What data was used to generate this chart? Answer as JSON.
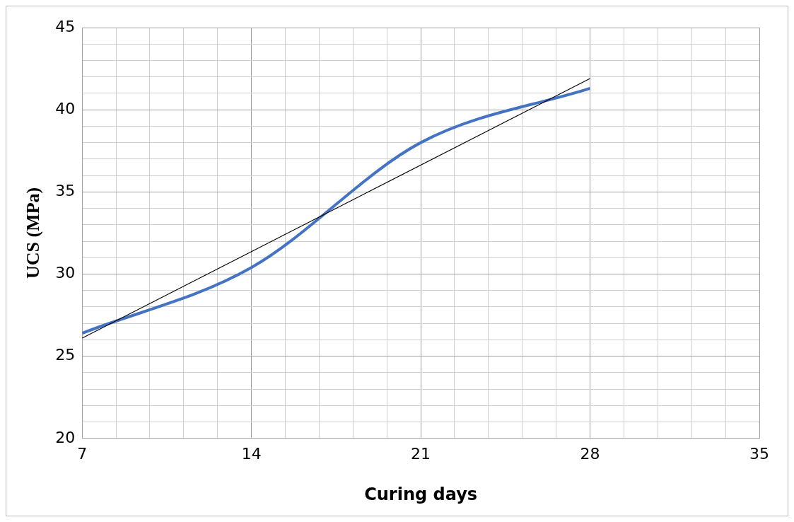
{
  "chart_data": {
    "type": "line",
    "xlabel": "Curing days",
    "ylabel": "UCS (MPa)",
    "x": [
      7,
      14,
      21,
      28
    ],
    "series": [
      {
        "color": "#4472c4",
        "values": [
          26.4,
          30.4,
          38.0,
          41.3
        ]
      },
      {
        "type": "line",
        "x": [
          7,
          28
        ],
        "values": [
          26.1,
          41.9
        ],
        "color": "#000000"
      }
    ],
    "xlim": [
      7,
      35
    ],
    "xticks": [
      7,
      {
        "value": 8.4,
        "label": null
      },
      {
        "value": 9.8,
        "label": null
      },
      {
        "value": 11.2,
        "label": null
      },
      {
        "value": 12.6,
        "label": null
      },
      14,
      {
        "value": 15.4,
        "label": null
      },
      {
        "value": 16.8,
        "label": null
      },
      {
        "value": 18.2,
        "label": null
      },
      {
        "value": 19.6,
        "label": null
      },
      21,
      {
        "value": 22.4,
        "label": null
      },
      {
        "value": 23.8,
        "label": null
      },
      {
        "value": 25.2,
        "label": null
      },
      {
        "value": 26.6,
        "label": null
      },
      28,
      {
        "value": 29.4,
        "label": null
      },
      {
        "value": 30.8,
        "label": null
      },
      {
        "value": 32.2,
        "label": null
      },
      {
        "value": 33.6,
        "label": null
      },
      35
    ],
    "ylim": [
      20,
      45
    ],
    "yticks": [
      20,
      {
        "value": 21,
        "label": null
      },
      {
        "value": 22,
        "label": null
      },
      {
        "value": 23,
        "label": null
      },
      {
        "value": 24,
        "label": null
      },
      25,
      {
        "value": 26,
        "label": null
      },
      {
        "value": 27,
        "label": null
      },
      {
        "value": 28,
        "label": null
      },
      {
        "value": 29,
        "label": null
      },
      30,
      {
        "value": 31,
        "label": null
      },
      {
        "value": 32,
        "label": null
      },
      {
        "value": 33,
        "label": null
      },
      {
        "value": 34,
        "label": null
      },
      35,
      {
        "value": 36,
        "label": null
      },
      {
        "value": 37,
        "label": null
      },
      {
        "value": 38,
        "label": null
      },
      {
        "value": 39,
        "label": null
      },
      40,
      {
        "value": 41,
        "label": null
      },
      {
        "value": 42,
        "label": null
      },
      {
        "value": 43,
        "label": null
      },
      {
        "value": 44,
        "label": null
      },
      45
    ],
    "grid": true,
    "marker": "none",
    "line_style": "solid",
    "legend": false
  }
}
